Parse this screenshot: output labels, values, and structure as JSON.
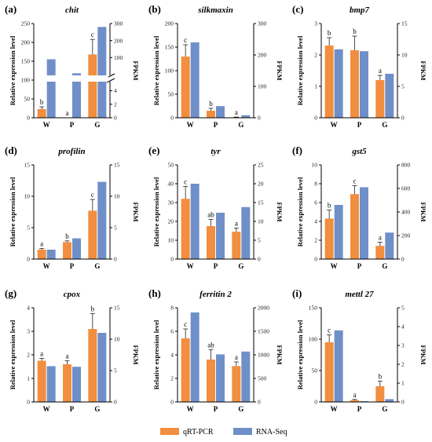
{
  "colors": {
    "qpcr": "#F28E3F",
    "rnaseq": "#6F8FC9",
    "axis": "#000000"
  },
  "legend": {
    "qpcr_label": "qRT-PCR",
    "rnaseq_label": "RNA-Seq"
  },
  "chart_data": [
    {
      "id": "a",
      "type": "bar",
      "panel_label": "(a)",
      "title": "chit",
      "categories": [
        "W",
        "P",
        "G"
      ],
      "ylabel": "Relative expression level",
      "y2label": "FPKM",
      "ylim": [
        0,
        250
      ],
      "yticks": [
        0,
        50,
        100,
        150,
        200,
        250
      ],
      "y2_broken": true,
      "y2_lower": {
        "ticks": [
          0,
          2,
          4
        ],
        "range": [
          0,
          5
        ]
      },
      "y2_upper": {
        "ticks": [
          100,
          200,
          300
        ],
        "range": [
          0,
          300
        ]
      },
      "series": [
        {
          "name": "qRT-PCR",
          "axis": "left",
          "values": [
            23,
            0,
            168
          ],
          "errors": [
            6,
            0,
            40
          ],
          "letters": [
            "b",
            "a",
            "c"
          ]
        },
        {
          "name": "RNA-Seq",
          "axis": "right",
          "values": [
            90,
            7.7,
            280
          ]
        }
      ]
    },
    {
      "id": "b",
      "type": "bar",
      "panel_label": "(b)",
      "title": "silkmaxin",
      "categories": [
        "W",
        "P",
        "G"
      ],
      "ylabel": "Relative expression level",
      "y2label": "FPKM",
      "ylim": [
        0,
        200
      ],
      "yticks": [
        0,
        50,
        100,
        150,
        200
      ],
      "y2lim": [
        0,
        300
      ],
      "y2ticks": [
        0,
        100,
        200,
        300
      ],
      "series": [
        {
          "name": "qRT-PCR",
          "axis": "left",
          "values": [
            130,
            15,
            1
          ],
          "errors": [
            25,
            5,
            0.5
          ],
          "letters": [
            "c",
            "b",
            "a"
          ]
        },
        {
          "name": "RNA-Seq",
          "axis": "right",
          "values": [
            240,
            37,
            8
          ]
        }
      ]
    },
    {
      "id": "c",
      "type": "bar",
      "panel_label": "(c)",
      "title": "bmp7",
      "categories": [
        "W",
        "P",
        "G"
      ],
      "ylabel": "Relative expression level",
      "y2label": "FPKM",
      "ylim": [
        0,
        3
      ],
      "yticks": [
        0,
        1,
        2,
        3
      ],
      "y2lim": [
        0,
        15
      ],
      "y2ticks": [
        0,
        5,
        10,
        15
      ],
      "series": [
        {
          "name": "qRT-PCR",
          "axis": "left",
          "values": [
            2.3,
            2.15,
            1.2
          ],
          "errors": [
            0.25,
            0.45,
            0.15
          ],
          "letters": [
            "b",
            "b",
            "a"
          ]
        },
        {
          "name": "RNA-Seq",
          "axis": "right",
          "values": [
            10.9,
            10.6,
            7.0
          ]
        }
      ]
    },
    {
      "id": "d",
      "type": "bar",
      "panel_label": "(d)",
      "title": "profilin",
      "categories": [
        "W",
        "P",
        "G"
      ],
      "ylabel": "Relative expression level",
      "y2label": "FPKM",
      "ylim": [
        0,
        15
      ],
      "yticks": [
        0,
        5,
        10,
        15
      ],
      "y2lim": [
        0,
        15
      ],
      "y2ticks": [
        0,
        5,
        10,
        15
      ],
      "series": [
        {
          "name": "qRT-PCR",
          "axis": "left",
          "values": [
            1.5,
            2.7,
            7.7
          ],
          "errors": [
            0.2,
            0.2,
            1.8
          ],
          "letters": [
            "a",
            "b",
            "c"
          ]
        },
        {
          "name": "RNA-Seq",
          "axis": "right",
          "values": [
            1.5,
            3.3,
            12.3
          ]
        }
      ]
    },
    {
      "id": "e",
      "type": "bar",
      "panel_label": "(e)",
      "title": "tyr",
      "categories": [
        "W",
        "P",
        "G"
      ],
      "ylabel": "Relative expression level",
      "y2label": "FPKM",
      "ylim": [
        0,
        50
      ],
      "yticks": [
        0,
        10,
        20,
        30,
        40,
        50
      ],
      "y2lim": [
        0,
        25
      ],
      "y2ticks": [
        0,
        5,
        10,
        15,
        20,
        25
      ],
      "series": [
        {
          "name": "qRT-PCR",
          "axis": "left",
          "values": [
            32,
            17.5,
            14.5
          ],
          "errors": [
            6.5,
            3.5,
            2
          ],
          "letters": [
            "c",
            "ab",
            "a"
          ]
        },
        {
          "name": "RNA-Seq",
          "axis": "right",
          "values": [
            20,
            12.3,
            13.8
          ]
        }
      ]
    },
    {
      "id": "f",
      "type": "bar",
      "panel_label": "(f)",
      "title": "gst5",
      "categories": [
        "W",
        "P",
        "G"
      ],
      "ylabel": "Relative expression level",
      "y2label": "FPKM",
      "ylim": [
        0,
        10
      ],
      "yticks": [
        0,
        2,
        4,
        6,
        8,
        10
      ],
      "y2lim": [
        0,
        800
      ],
      "y2ticks": [
        0,
        200,
        400,
        600,
        800
      ],
      "series": [
        {
          "name": "qRT-PCR",
          "axis": "left",
          "values": [
            4.3,
            6.9,
            1.4
          ],
          "errors": [
            0.9,
            0.9,
            0.4
          ],
          "letters": [
            "b",
            "c",
            "a"
          ]
        },
        {
          "name": "RNA-Seq",
          "axis": "right",
          "values": [
            460,
            610,
            225
          ]
        }
      ]
    },
    {
      "id": "g",
      "type": "bar",
      "panel_label": "(g)",
      "title": "cpox",
      "categories": [
        "W",
        "P",
        "G"
      ],
      "ylabel": "Relative expression level",
      "y2label": "FPKM",
      "ylim": [
        0,
        4
      ],
      "yticks": [
        0,
        1,
        2,
        3,
        4
      ],
      "y2lim": [
        0,
        15
      ],
      "y2ticks": [
        0,
        5,
        10,
        15
      ],
      "series": [
        {
          "name": "qRT-PCR",
          "axis": "left",
          "values": [
            1.75,
            1.6,
            3.1
          ],
          "errors": [
            0.1,
            0.15,
            0.65
          ],
          "letters": [
            "a",
            "a",
            "b"
          ]
        },
        {
          "name": "RNA-Seq",
          "axis": "right",
          "values": [
            5.7,
            5.6,
            11.0
          ]
        }
      ]
    },
    {
      "id": "h",
      "type": "bar",
      "panel_label": "(h)",
      "title": "ferritin 2",
      "categories": [
        "W",
        "P",
        "G"
      ],
      "ylabel": "Relative expression level",
      "y2label": "FPKM",
      "ylim": [
        0,
        8
      ],
      "yticks": [
        0,
        2,
        4,
        6,
        8
      ],
      "y2lim": [
        0,
        2000
      ],
      "y2ticks": [
        0,
        500,
        1000,
        1500,
        2000
      ],
      "series": [
        {
          "name": "qRT-PCR",
          "axis": "left",
          "values": [
            5.4,
            3.6,
            3.05
          ],
          "errors": [
            0.8,
            0.85,
            0.35
          ],
          "letters": [
            "c",
            "ab",
            "a"
          ]
        },
        {
          "name": "RNA-Seq",
          "axis": "right",
          "values": [
            1900,
            1010,
            1070
          ]
        }
      ]
    },
    {
      "id": "i",
      "type": "bar",
      "panel_label": "(i)",
      "title": "mettl 27",
      "categories": [
        "W",
        "P",
        "G"
      ],
      "ylabel": "Relative expression level",
      "y2label": "FPKM",
      "ylim": [
        0,
        150
      ],
      "yticks": [
        0,
        50,
        100,
        150
      ],
      "y2lim": [
        0,
        5
      ],
      "y2ticks": [
        0,
        1,
        2,
        3,
        4,
        5
      ],
      "series": [
        {
          "name": "qRT-PCR",
          "axis": "left",
          "values": [
            95,
            3,
            25
          ],
          "errors": [
            12,
            1,
            8
          ],
          "letters": [
            "c",
            "a",
            "b"
          ]
        },
        {
          "name": "RNA-Seq",
          "axis": "right",
          "values": [
            3.8,
            0.04,
            0.15
          ]
        }
      ]
    }
  ]
}
